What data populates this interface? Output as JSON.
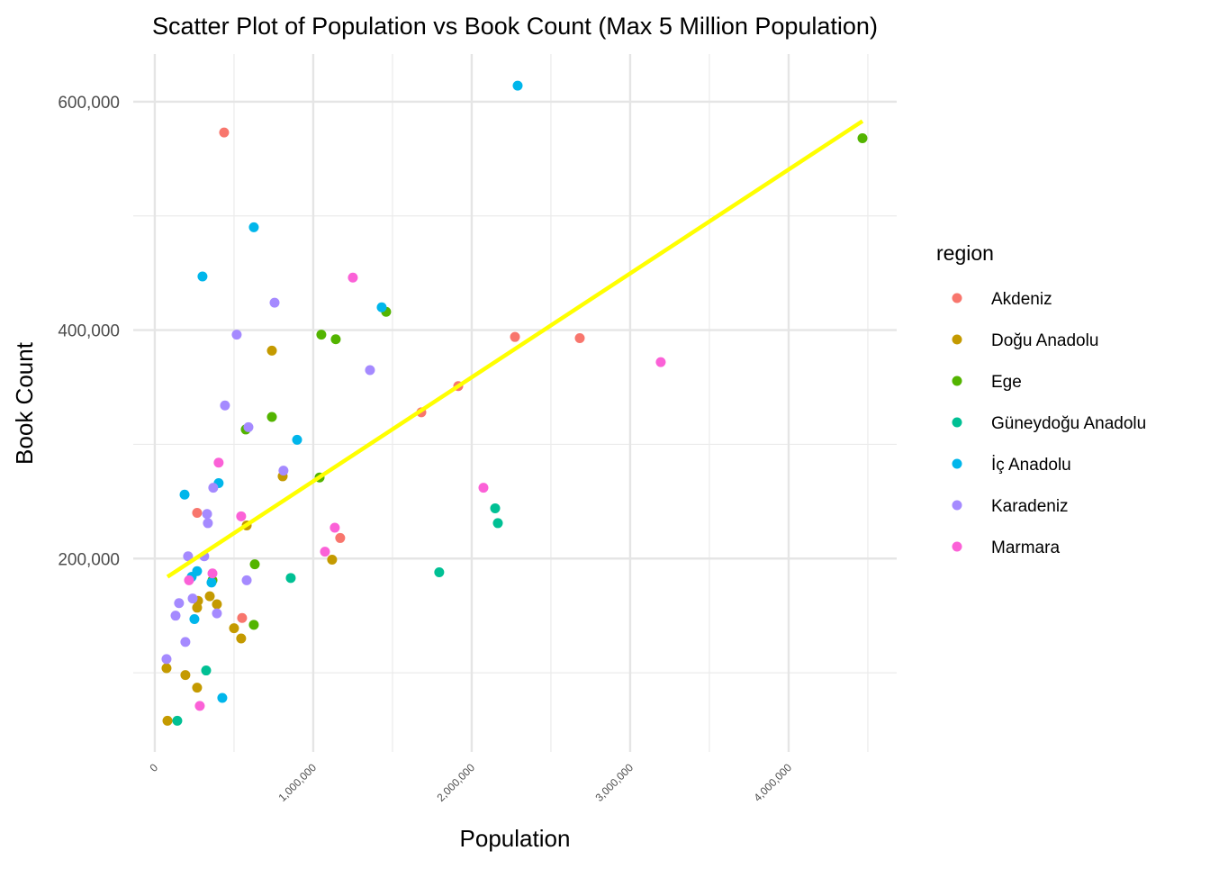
{
  "chart_data": {
    "type": "scatter",
    "title": "Scatter Plot of Population vs Book Count (Max 5 Million Population)",
    "x_label": "Population",
    "y_label": "Book Count",
    "legend_title": "region",
    "legend_position": "right",
    "grid": true,
    "xlim": [
      -136000,
      4682000
    ],
    "ylim": [
      30700,
      641700
    ],
    "xticks": [
      0,
      {
        "value": 1000000,
        "label": "1,000,000"
      },
      {
        "value": 2000000,
        "label": "2,000,000"
      },
      {
        "value": 3000000,
        "label": "3,000,000"
      },
      {
        "value": 4000000,
        "label": "4,000,000"
      }
    ],
    "yticks": [
      {
        "value": 200000,
        "label": "200,000"
      },
      {
        "value": 400000,
        "label": "400,000"
      },
      {
        "value": 600000,
        "label": "600,000"
      }
    ],
    "minor_xticks": [
      500000,
      1500000,
      2500000,
      3500000,
      4500000
    ],
    "minor_yticks": [
      100000,
      300000,
      500000
    ],
    "series": [
      {
        "name": "Akdeniz",
        "color": "#F8766D",
        "x": [
          437500,
          267000,
          551000,
          1170000,
          1682000,
          1915000,
          2273000,
          2682000
        ],
        "y": [
          573000,
          240000,
          148000,
          218000,
          328000,
          351000,
          394000,
          393000
        ]
      },
      {
        "name": "Doğu Anadolu",
        "color": "#C49A00",
        "x": [
          739000,
          807000,
          580000,
          347000,
          392000,
          273000,
          267000,
          500000,
          545000,
          74000,
          193000,
          267000,
          80000,
          1119000
        ],
        "y": [
          382000,
          272000,
          229000,
          167000,
          160000,
          163000,
          157000,
          139000,
          130000,
          104000,
          98000,
          87000,
          58000,
          199000
        ]
      },
      {
        "name": "Ege",
        "color": "#53B400",
        "x": [
          4466000,
          1460000,
          1051000,
          1142000,
          739000,
          574000,
          1040000,
          364000,
          631000,
          625000
        ],
        "y": [
          568000,
          416000,
          396000,
          392000,
          324000,
          313000,
          271000,
          181000,
          195000,
          142000
        ]
      },
      {
        "name": "Güneydoğu Anadolu",
        "color": "#00C094",
        "x": [
          2148000,
          2165000,
          1795000,
          858000,
          324000,
          142000
        ],
        "y": [
          244000,
          231000,
          188000,
          183000,
          102000,
          58000
        ]
      },
      {
        "name": "İç Anadolu",
        "color": "#00B6EB",
        "x": [
          2290000,
          625000,
          301000,
          1432000,
          898000,
          403000,
          188000,
          267000,
          233000,
          358000,
          250000,
          426000
        ],
        "y": [
          614000,
          490000,
          447000,
          420000,
          304000,
          266000,
          256000,
          189000,
          184000,
          179000,
          147000,
          78000
        ]
      },
      {
        "name": "Karadeniz",
        "color": "#A58AFF",
        "x": [
          756000,
          517000,
          1358000,
          443000,
          591000,
          812000,
          369000,
          330000,
          335000,
          210000,
          312000,
          580000,
          239000,
          153000,
          131000,
          392000,
          193000,
          74000
        ],
        "y": [
          424000,
          396000,
          365000,
          334000,
          315000,
          277000,
          262000,
          239000,
          231000,
          202000,
          202000,
          181000,
          165000,
          161000,
          150000,
          152000,
          127000,
          112000
        ]
      },
      {
        "name": "Marmara",
        "color": "#FB61D7",
        "x": [
          1250000,
          3193000,
          2074000,
          403000,
          545000,
          1136000,
          1074000,
          364000,
          216000,
          284000
        ],
        "y": [
          446000,
          372000,
          262000,
          284000,
          237000,
          227000,
          206000,
          187000,
          181000,
          71000
        ]
      }
    ],
    "trend": {
      "x": [
        80000,
        4466000
      ],
      "y": [
        184000,
        583000
      ],
      "color": "#FFFF00"
    }
  }
}
